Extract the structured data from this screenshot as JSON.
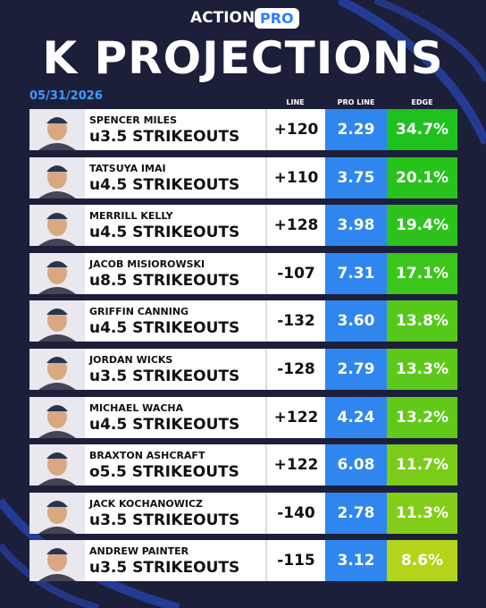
{
  "header": {
    "brand": "ACTION",
    "badge": "PRO",
    "title": "K PROJECTIONS",
    "date": "05/31/2026"
  },
  "table": {
    "columns": [
      "LINE",
      "PRO LINE",
      "EDGE"
    ],
    "rows": [
      {
        "name": "SPENCER MILES",
        "prop": "u3.5 STRIKEOUTS",
        "line": "+120",
        "pro_line": "2.29",
        "edge": "34.7%"
      },
      {
        "name": "TATSUYA IMAI",
        "prop": "u4.5 STRIKEOUTS",
        "line": "+110",
        "pro_line": "3.75",
        "edge": "20.1%"
      },
      {
        "name": "MERRILL KELLY",
        "prop": "u4.5 STRIKEOUTS",
        "line": "+128",
        "pro_line": "3.98",
        "edge": "19.4%"
      },
      {
        "name": "JACOB MISIOROWSKI",
        "prop": "u8.5 STRIKEOUTS",
        "line": "-107",
        "pro_line": "7.31",
        "edge": "17.1%"
      },
      {
        "name": "GRIFFIN CANNING",
        "prop": "u4.5 STRIKEOUTS",
        "line": "-132",
        "pro_line": "3.60",
        "edge": "13.8%"
      },
      {
        "name": "JORDAN WICKS",
        "prop": "u3.5 STRIKEOUTS",
        "line": "-128",
        "pro_line": "2.79",
        "edge": "13.3%"
      },
      {
        "name": "MICHAEL WACHA",
        "prop": "u4.5 STRIKEOUTS",
        "line": "+122",
        "pro_line": "4.24",
        "edge": "13.2%"
      },
      {
        "name": "BRAXTON ASHCRAFT",
        "prop": "o5.5 STRIKEOUTS",
        "line": "+122",
        "pro_line": "6.08",
        "edge": "11.7%"
      },
      {
        "name": "JACK KOCHANOWICZ",
        "prop": "u3.5 STRIKEOUTS",
        "line": "-140",
        "pro_line": "2.78",
        "edge": "11.3%"
      },
      {
        "name": "ANDREW PAINTER",
        "prop": "u3.5 STRIKEOUTS",
        "line": "-115",
        "pro_line": "3.12",
        "edge": "8.6%"
      }
    ]
  }
}
